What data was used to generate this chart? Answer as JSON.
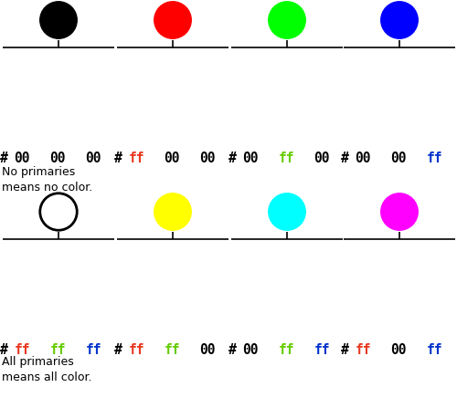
{
  "panels": [
    {
      "circle_color": "#000000",
      "circle_filled": true,
      "hex_r": "00",
      "hex_g": "00",
      "hex_b": "00"
    },
    {
      "circle_color": "#ff0000",
      "circle_filled": true,
      "hex_r": "ff",
      "hex_g": "00",
      "hex_b": "00"
    },
    {
      "circle_color": "#00ff00",
      "circle_filled": true,
      "hex_r": "00",
      "hex_g": "ff",
      "hex_b": "00"
    },
    {
      "circle_color": "#0000ff",
      "circle_filled": true,
      "hex_r": "00",
      "hex_g": "00",
      "hex_b": "ff"
    },
    {
      "circle_color": "#ffffff",
      "circle_filled": false,
      "hex_r": "ff",
      "hex_g": "ff",
      "hex_b": "ff"
    },
    {
      "circle_color": "#ffff00",
      "circle_filled": true,
      "hex_r": "ff",
      "hex_g": "ff",
      "hex_b": "00"
    },
    {
      "circle_color": "#00ffff",
      "circle_filled": true,
      "hex_r": "00",
      "hex_g": "ff",
      "hex_b": "ff"
    },
    {
      "circle_color": "#ff00ff",
      "circle_filled": true,
      "hex_r": "ff",
      "hex_g": "00",
      "hex_b": "ff"
    }
  ],
  "row1_annotation": "No primaries\nmeans no color.",
  "row2_annotation": "All primaries\nmeans all color.",
  "bar_gray": "#e0e0e0",
  "red_color": "#e83820",
  "green_color": "#66cc00",
  "blue_color": "#0033cc",
  "fig_width": 5.0,
  "fig_height": 4.47
}
